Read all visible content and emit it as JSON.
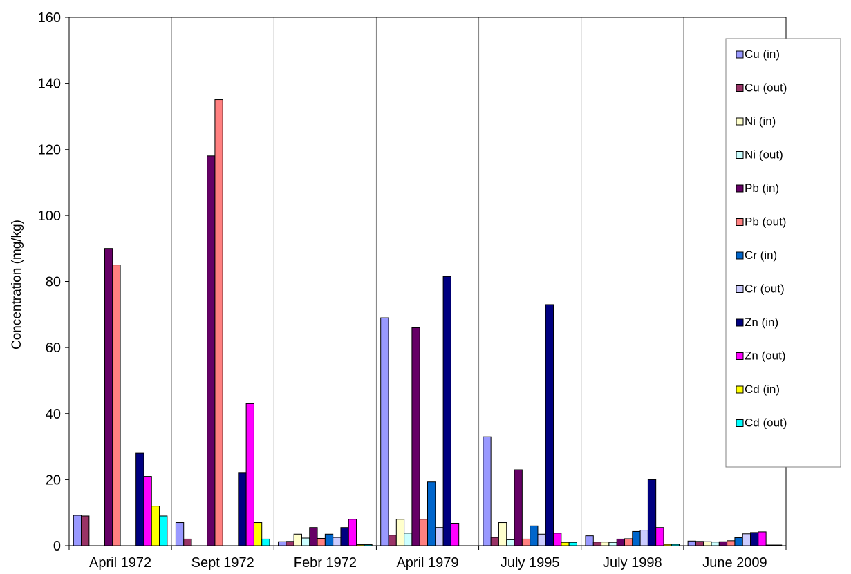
{
  "chart_data": {
    "type": "bar",
    "title": "",
    "xlabel": "",
    "ylabel": "Concentration  (mg/kg)",
    "ylim": [
      0,
      160
    ],
    "yticks": [
      0,
      20,
      40,
      60,
      80,
      100,
      120,
      140,
      160
    ],
    "grid": "vertical lines between categories",
    "legend_position": "right",
    "categories": [
      "April 1972",
      "Sept 1972",
      "Febr 1972",
      "April 1979",
      "July 1995",
      "July 1998",
      "June 2009"
    ],
    "series": [
      {
        "name": "Cu (in)",
        "color": "#9999ff",
        "values": [
          9.2,
          7,
          1.2,
          69,
          33,
          3,
          1.4
        ]
      },
      {
        "name": "Cu (out)",
        "color": "#993366",
        "values": [
          9,
          2,
          1.3,
          3.2,
          2.5,
          1.1,
          1.3
        ]
      },
      {
        "name": "Ni (in)",
        "color": "#ffffcc",
        "values": [
          0,
          0,
          3.5,
          8,
          7,
          1.1,
          1.2
        ]
      },
      {
        "name": "Ni (out)",
        "color": "#ccffff",
        "values": [
          0,
          0,
          2.3,
          3.8,
          1.8,
          1,
          1.1
        ]
      },
      {
        "name": "Pb (in)",
        "color": "#660066",
        "values": [
          90,
          118,
          5.5,
          66,
          23,
          2,
          1.2
        ]
      },
      {
        "name": "Pb (out)",
        "color": "#ff8080",
        "values": [
          85,
          135,
          2.2,
          8,
          2,
          2.1,
          1.5
        ]
      },
      {
        "name": "Cr (in)",
        "color": "#0066cc",
        "values": [
          0,
          0,
          3.5,
          19.3,
          6,
          4.3,
          2.4
        ]
      },
      {
        "name": "Cr (out)",
        "color": "#ccccff",
        "values": [
          0,
          0,
          2.5,
          5.5,
          3.5,
          4.7,
          3.6
        ]
      },
      {
        "name": "Zn (in)",
        "color": "#000080",
        "values": [
          28,
          22,
          5.5,
          81.5,
          73,
          20,
          4
        ]
      },
      {
        "name": "Zn (out)",
        "color": "#ff00ff",
        "values": [
          21,
          43,
          8,
          6.8,
          3.8,
          5.5,
          4.2
        ]
      },
      {
        "name": "Cd (in)",
        "color": "#ffff00",
        "values": [
          12,
          7,
          0.3,
          0,
          1,
          0.4,
          0.2
        ]
      },
      {
        "name": "Cd (out)",
        "color": "#00ffff",
        "values": [
          9,
          2,
          0.3,
          0,
          1,
          0.4,
          0.2
        ]
      }
    ]
  }
}
